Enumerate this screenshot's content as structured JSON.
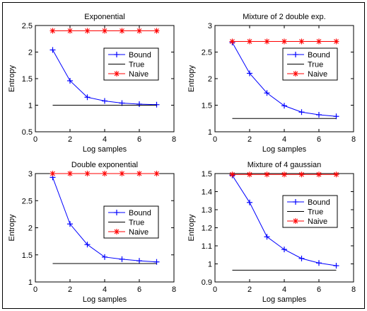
{
  "chart_data": [
    {
      "type": "line",
      "title": "Exponential",
      "xlabel": "Log samples",
      "ylabel": "Entropy",
      "xlim": [
        0,
        8
      ],
      "ylim": [
        0.5,
        2.5
      ],
      "xticks": [
        "0",
        "2",
        "4",
        "6",
        "8"
      ],
      "yticks": [
        "0.5",
        "1",
        "1.5",
        "2",
        "2.5"
      ],
      "legend_position": "upper-right",
      "series": [
        {
          "name": "Bound",
          "color": "#0000ff",
          "marker": "plus",
          "x": [
            1,
            2,
            3,
            4,
            5,
            6,
            7
          ],
          "values": [
            2.04,
            1.46,
            1.15,
            1.08,
            1.04,
            1.02,
            1.01
          ]
        },
        {
          "name": "True",
          "color": "#000000",
          "marker": "none",
          "x": [
            1,
            7
          ],
          "values": [
            1.0,
            1.0
          ]
        },
        {
          "name": "Naive",
          "color": "#ff0000",
          "marker": "star",
          "x": [
            1,
            2,
            3,
            4,
            5,
            6,
            7
          ],
          "values": [
            2.4,
            2.4,
            2.4,
            2.4,
            2.4,
            2.4,
            2.4
          ]
        }
      ]
    },
    {
      "type": "line",
      "title": "Mixture of 2 double exp.",
      "xlabel": "Log samples",
      "ylabel": "Entropy",
      "xlim": [
        0,
        8
      ],
      "ylim": [
        1,
        3
      ],
      "xticks": [
        "0",
        "2",
        "4",
        "6",
        "8"
      ],
      "yticks": [
        "1",
        "1.5",
        "2",
        "2.5",
        "3"
      ],
      "legend_position": "upper-right",
      "series": [
        {
          "name": "Bound",
          "color": "#0000ff",
          "marker": "plus",
          "x": [
            1,
            2,
            3,
            4,
            5,
            6,
            7
          ],
          "values": [
            2.68,
            2.1,
            1.73,
            1.49,
            1.37,
            1.32,
            1.29
          ]
        },
        {
          "name": "True",
          "color": "#000000",
          "marker": "none",
          "x": [
            1,
            7
          ],
          "values": [
            1.25,
            1.25
          ]
        },
        {
          "name": "Naive",
          "color": "#ff0000",
          "marker": "star",
          "x": [
            1,
            2,
            3,
            4,
            5,
            6,
            7
          ],
          "values": [
            2.7,
            2.7,
            2.7,
            2.7,
            2.7,
            2.7,
            2.7
          ]
        }
      ]
    },
    {
      "type": "line",
      "title": "Double exponential",
      "xlabel": "Log samples",
      "ylabel": "Entropy",
      "xlim": [
        0,
        8
      ],
      "ylim": [
        1,
        3
      ],
      "xticks": [
        "0",
        "2",
        "4",
        "6",
        "8"
      ],
      "yticks": [
        "1",
        "1.5",
        "2",
        "2.5",
        "3"
      ],
      "legend_position": "right",
      "series": [
        {
          "name": "Bound",
          "color": "#0000ff",
          "marker": "plus",
          "x": [
            1,
            2,
            3,
            4,
            5,
            6,
            7
          ],
          "values": [
            2.93,
            2.07,
            1.69,
            1.46,
            1.42,
            1.39,
            1.37
          ]
        },
        {
          "name": "True",
          "color": "#000000",
          "marker": "none",
          "x": [
            1,
            7
          ],
          "values": [
            1.34,
            1.34
          ]
        },
        {
          "name": "Naive",
          "color": "#ff0000",
          "marker": "star",
          "x": [
            1,
            2,
            3,
            4,
            5,
            6,
            7
          ],
          "values": [
            3.0,
            3.0,
            3.0,
            3.0,
            3.0,
            3.0,
            3.0
          ]
        }
      ]
    },
    {
      "type": "line",
      "title": "Mixture of 4 gaussian",
      "xlabel": "Log samples",
      "ylabel": "Entropy",
      "xlim": [
        0,
        8
      ],
      "ylim": [
        0.9,
        1.5
      ],
      "xticks": [
        "0",
        "2",
        "4",
        "6",
        "8"
      ],
      "yticks": [
        "0.9",
        "1",
        "1.1",
        "1.2",
        "1.3",
        "1.4",
        "1.5"
      ],
      "legend_position": "upper-right",
      "series": [
        {
          "name": "Bound",
          "color": "#0000ff",
          "marker": "plus",
          "x": [
            1,
            2,
            3,
            4,
            5,
            6,
            7
          ],
          "values": [
            1.49,
            1.34,
            1.15,
            1.08,
            1.03,
            1.005,
            0.99
          ]
        },
        {
          "name": "True",
          "color": "#000000",
          "marker": "none",
          "x": [
            1,
            7
          ],
          "values": [
            0.965,
            0.965
          ]
        },
        {
          "name": "Naive",
          "color": "#ff0000",
          "marker": "star",
          "x": [
            1,
            2,
            3,
            4,
            5,
            6,
            7
          ],
          "values": [
            1.495,
            1.495,
            1.495,
            1.495,
            1.495,
            1.495,
            1.495
          ]
        }
      ]
    }
  ]
}
